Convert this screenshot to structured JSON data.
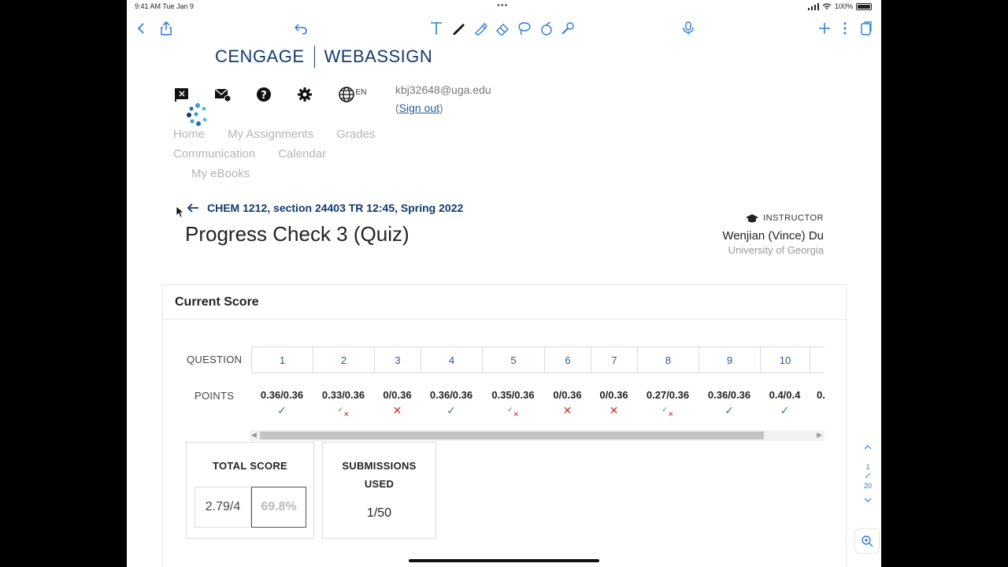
{
  "status_bar": {
    "time": "9:41 AM  Tue Jan 9",
    "battery": "100%"
  },
  "toolbar": {
    "icons": [
      "back-chevron-icon",
      "share-icon",
      "undo-icon",
      "text-tool-icon",
      "pen-icon",
      "highlighter-icon",
      "eraser-icon",
      "lasso-icon",
      "shapes-icon",
      "pencil-icon",
      "mic-icon",
      "add-icon",
      "more-icon",
      "pages-icon"
    ]
  },
  "header": {
    "brand_left": "CENGAGE",
    "brand_right": "WEBASSIGN",
    "language": "EN",
    "email": "kbj32648@uga.edu",
    "sign_out": "Sign out"
  },
  "nav": {
    "home": "Home",
    "my_assignments": "My Assignments",
    "grades": "Grades",
    "communication": "Communication",
    "calendar": "Calendar",
    "my_ebooks": "My eBooks"
  },
  "page": {
    "course": "CHEM 1212, section 24403 TR 12:45, Spring 2022",
    "title": "Progress Check 3 (Quiz)"
  },
  "instructor": {
    "label": "INSTRUCTOR",
    "name": "Wenjian (Vince) Du",
    "org": "University of Georgia"
  },
  "score": {
    "card_title": "Current Score",
    "question_label": "QUESTION",
    "points_label": "POINTS",
    "questions": [
      {
        "num": "1",
        "points": "0.36/0.36",
        "status": "correct"
      },
      {
        "num": "2",
        "points": "0.33/0.36",
        "status": "partial"
      },
      {
        "num": "3",
        "points": "0/0.36",
        "status": "incorrect"
      },
      {
        "num": "4",
        "points": "0.36/0.36",
        "status": "correct"
      },
      {
        "num": "5",
        "points": "0.35/0.36",
        "status": "partial"
      },
      {
        "num": "6",
        "points": "0/0.36",
        "status": "incorrect"
      },
      {
        "num": "7",
        "points": "0/0.36",
        "status": "incorrect"
      },
      {
        "num": "8",
        "points": "0.27/0.36",
        "status": "partial"
      },
      {
        "num": "9",
        "points": "0.36/0.36",
        "status": "correct"
      },
      {
        "num": "10",
        "points": "0.4/0.4",
        "status": "correct"
      }
    ],
    "overflow_points": "0.",
    "total_label": "TOTAL SCORE",
    "total_points": "2.79/4",
    "total_percent": "69.8%",
    "submissions_label_1": "SUBMISSIONS",
    "submissions_label_2": "USED",
    "submissions_value": "1/50"
  },
  "pager": {
    "current": "1",
    "total": "20"
  },
  "colors": {
    "brand": "#123b6d",
    "link": "#1f5c9e",
    "correct": "#2e8b3a",
    "incorrect": "#c9302c",
    "ipad_accent": "#2b7bd6"
  }
}
